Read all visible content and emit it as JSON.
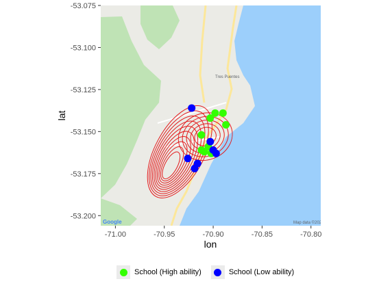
{
  "chart_data": {
    "type": "map-scatter-density",
    "xlabel": "lon",
    "ylabel": "lat",
    "xlim": [
      -71.015,
      -70.79
    ],
    "ylim": [
      -53.206,
      -53.075
    ],
    "x_ticks": [
      -71.0,
      -70.95,
      -70.9,
      -70.85,
      -70.8
    ],
    "x_tick_labels": [
      "-71.00",
      "-70.95",
      "-70.90",
      "-70.85",
      "-70.80"
    ],
    "y_ticks": [
      -53.075,
      -53.1,
      -53.125,
      -53.15,
      -53.175,
      -53.2
    ],
    "y_tick_labels": [
      "-53.075",
      "-53.100",
      "-53.125",
      "-53.150",
      "-53.175",
      "-53.200"
    ],
    "grid": false,
    "legend_position": "bottom",
    "series": [
      {
        "name": "School (High ability)",
        "color": "#33ff00",
        "points": [
          {
            "x": -70.898,
            "y": -53.139
          },
          {
            "x": -70.89,
            "y": -53.139
          },
          {
            "x": -70.903,
            "y": -53.142
          },
          {
            "x": -70.887,
            "y": -53.146
          },
          {
            "x": -70.912,
            "y": -53.152
          },
          {
            "x": -70.905,
            "y": -53.159
          },
          {
            "x": -70.912,
            "y": -53.161
          },
          {
            "x": -70.909,
            "y": -53.162
          },
          {
            "x": -70.902,
            "y": -53.163
          }
        ]
      },
      {
        "name": "School (Low ability)",
        "color": "#0000ff",
        "points": [
          {
            "x": -70.922,
            "y": -53.136
          },
          {
            "x": -70.903,
            "y": -53.156
          },
          {
            "x": -70.9,
            "y": -53.161
          },
          {
            "x": -70.897,
            "y": -53.163
          },
          {
            "x": -70.926,
            "y": -53.166
          },
          {
            "x": -70.916,
            "y": -53.169
          },
          {
            "x": -70.919,
            "y": -53.172
          }
        ]
      }
    ],
    "density_contours": {
      "color": "#e31a1c",
      "levels": 10,
      "peak": {
        "x": -70.944,
        "y": -53.171
      }
    }
  },
  "basemap": {
    "land_color": "#ebebe6",
    "water_color": "#9ccffb",
    "park_color": "#bfe3b5",
    "road_color": "#fce79a",
    "place_label": "Tres Puentes",
    "attribution": "Map data ©2020",
    "logo": "Google"
  }
}
